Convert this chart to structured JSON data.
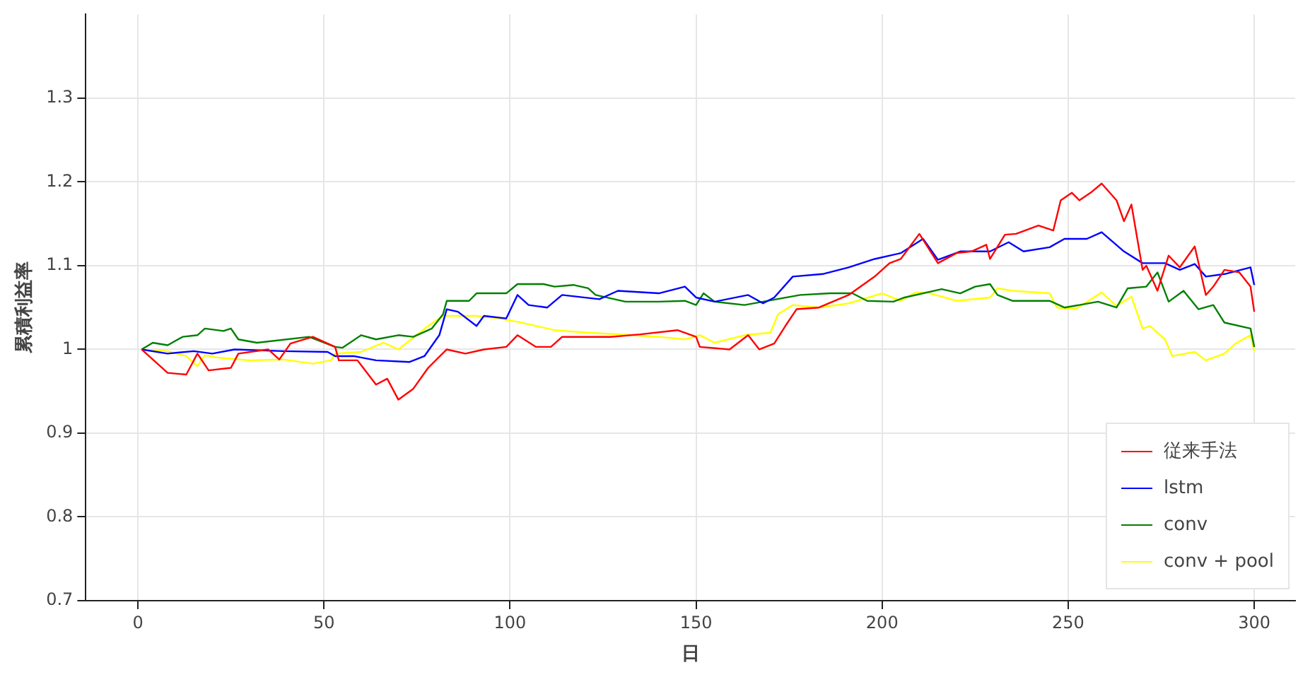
{
  "chart_data": {
    "type": "line",
    "xlabel": "日",
    "ylabel": "累積利益率",
    "xlim": [
      -14,
      311
    ],
    "ylim": [
      0.7,
      1.4
    ],
    "xticks": [
      0,
      50,
      100,
      150,
      200,
      250,
      300
    ],
    "yticks": [
      0.7,
      0.8,
      0.9,
      1,
      1.1,
      1.2,
      1.3
    ],
    "grid": true,
    "legend": "bottom right",
    "marker": "none",
    "line_style": "solid",
    "series": [
      {
        "name": "従来手法",
        "color": "#ff0000",
        "x": [
          1,
          8,
          13,
          16,
          19,
          25,
          27,
          35,
          38,
          41,
          47,
          53,
          54,
          59,
          64,
          67,
          70,
          74,
          78,
          83,
          88,
          93,
          99,
          102,
          107,
          111,
          114,
          127,
          135,
          145,
          150,
          151,
          159,
          164,
          167,
          171,
          174,
          177,
          183,
          191,
          198,
          202,
          205,
          210,
          215,
          220,
          224,
          228,
          229,
          233,
          236,
          242,
          246,
          248,
          251,
          253,
          256,
          259,
          263,
          265,
          267,
          270,
          271,
          274,
          277,
          280,
          284,
          287,
          289,
          292,
          296,
          299,
          300
        ],
        "values": [
          1.0,
          0.972,
          0.97,
          0.995,
          0.975,
          0.978,
          0.995,
          1.0,
          0.988,
          1.007,
          1.015,
          1.003,
          0.987,
          0.987,
          0.958,
          0.965,
          0.94,
          0.953,
          0.978,
          1.0,
          0.995,
          1.0,
          1.003,
          1.017,
          1.003,
          1.003,
          1.015,
          1.015,
          1.018,
          1.023,
          1.015,
          1.003,
          1.0,
          1.017,
          1.0,
          1.007,
          1.028,
          1.048,
          1.05,
          1.065,
          1.087,
          1.103,
          1.108,
          1.138,
          1.103,
          1.115,
          1.117,
          1.125,
          1.108,
          1.137,
          1.138,
          1.148,
          1.142,
          1.178,
          1.187,
          1.178,
          1.187,
          1.198,
          1.178,
          1.153,
          1.173,
          1.095,
          1.1,
          1.07,
          1.112,
          1.098,
          1.123,
          1.065,
          1.075,
          1.095,
          1.092,
          1.075,
          1.045
        ]
      },
      {
        "name": "lstm",
        "color": "#0000ff",
        "x": [
          1,
          8,
          15,
          20,
          26,
          39,
          51,
          53,
          58,
          64,
          73,
          77,
          81,
          83,
          86,
          91,
          93,
          99,
          102,
          105,
          110,
          114,
          124,
          129,
          140,
          147,
          150,
          155,
          164,
          168,
          171,
          176,
          184,
          191,
          198,
          205,
          211,
          215,
          221,
          229,
          234,
          238,
          245,
          249,
          255,
          259,
          265,
          270,
          276,
          280,
          284,
          287,
          292,
          299,
          300
        ],
        "values": [
          1.0,
          0.995,
          0.998,
          0.995,
          1.0,
          0.998,
          0.997,
          0.992,
          0.992,
          0.987,
          0.985,
          0.992,
          1.017,
          1.048,
          1.045,
          1.028,
          1.04,
          1.037,
          1.065,
          1.053,
          1.05,
          1.065,
          1.06,
          1.07,
          1.067,
          1.075,
          1.062,
          1.057,
          1.065,
          1.055,
          1.062,
          1.087,
          1.09,
          1.098,
          1.108,
          1.115,
          1.132,
          1.107,
          1.117,
          1.117,
          1.128,
          1.117,
          1.122,
          1.132,
          1.132,
          1.14,
          1.117,
          1.103,
          1.103,
          1.095,
          1.102,
          1.087,
          1.09,
          1.098,
          1.077
        ]
      },
      {
        "name": "conv",
        "color": "#008000",
        "x": [
          1,
          4,
          8,
          12,
          16,
          18,
          23,
          25,
          27,
          32,
          46,
          53,
          55,
          60,
          64,
          70,
          74,
          79,
          82,
          83,
          89,
          91,
          99,
          102,
          109,
          112,
          117,
          121,
          123,
          131,
          140,
          147,
          150,
          152,
          155,
          163,
          178,
          186,
          192,
          196,
          203,
          206,
          216,
          221,
          225,
          229,
          231,
          235,
          245,
          249,
          253,
          258,
          263,
          266,
          271,
          274,
          277,
          281,
          285,
          289,
          292,
          299,
          300
        ],
        "values": [
          1.0,
          1.008,
          1.005,
          1.015,
          1.017,
          1.025,
          1.022,
          1.025,
          1.012,
          1.008,
          1.015,
          1.003,
          1.002,
          1.017,
          1.012,
          1.017,
          1.015,
          1.025,
          1.042,
          1.058,
          1.058,
          1.067,
          1.067,
          1.078,
          1.078,
          1.075,
          1.077,
          1.073,
          1.065,
          1.057,
          1.057,
          1.058,
          1.053,
          1.067,
          1.057,
          1.053,
          1.065,
          1.067,
          1.067,
          1.058,
          1.057,
          1.062,
          1.072,
          1.067,
          1.075,
          1.078,
          1.065,
          1.058,
          1.058,
          1.05,
          1.053,
          1.057,
          1.05,
          1.073,
          1.075,
          1.092,
          1.057,
          1.07,
          1.048,
          1.053,
          1.032,
          1.025,
          1.003
        ]
      },
      {
        "name": "conv + pool",
        "color": "#ffff00",
        "x": [
          1,
          8,
          13,
          16,
          18,
          22,
          30,
          39,
          47,
          52,
          53,
          60,
          66,
          70,
          78,
          82,
          84,
          91,
          97,
          102,
          112,
          121,
          133,
          140,
          147,
          151,
          155,
          163,
          170,
          172,
          176,
          183,
          191,
          200,
          205,
          209,
          212,
          220,
          229,
          231,
          235,
          245,
          247,
          252,
          259,
          263,
          267,
          270,
          272,
          276,
          278,
          284,
          287,
          292,
          295,
          299,
          300
        ],
        "values": [
          1.0,
          0.998,
          0.992,
          0.98,
          0.993,
          0.99,
          0.987,
          0.988,
          0.983,
          0.987,
          0.995,
          0.997,
          1.008,
          1.0,
          1.028,
          1.04,
          1.04,
          1.04,
          1.037,
          1.033,
          1.023,
          1.02,
          1.017,
          1.015,
          1.012,
          1.017,
          1.008,
          1.017,
          1.02,
          1.042,
          1.053,
          1.05,
          1.055,
          1.067,
          1.058,
          1.068,
          1.068,
          1.058,
          1.062,
          1.073,
          1.07,
          1.067,
          1.05,
          1.048,
          1.068,
          1.052,
          1.063,
          1.025,
          1.028,
          1.012,
          0.992,
          0.997,
          0.987,
          0.995,
          1.007,
          1.017,
          0.998
        ]
      }
    ]
  }
}
